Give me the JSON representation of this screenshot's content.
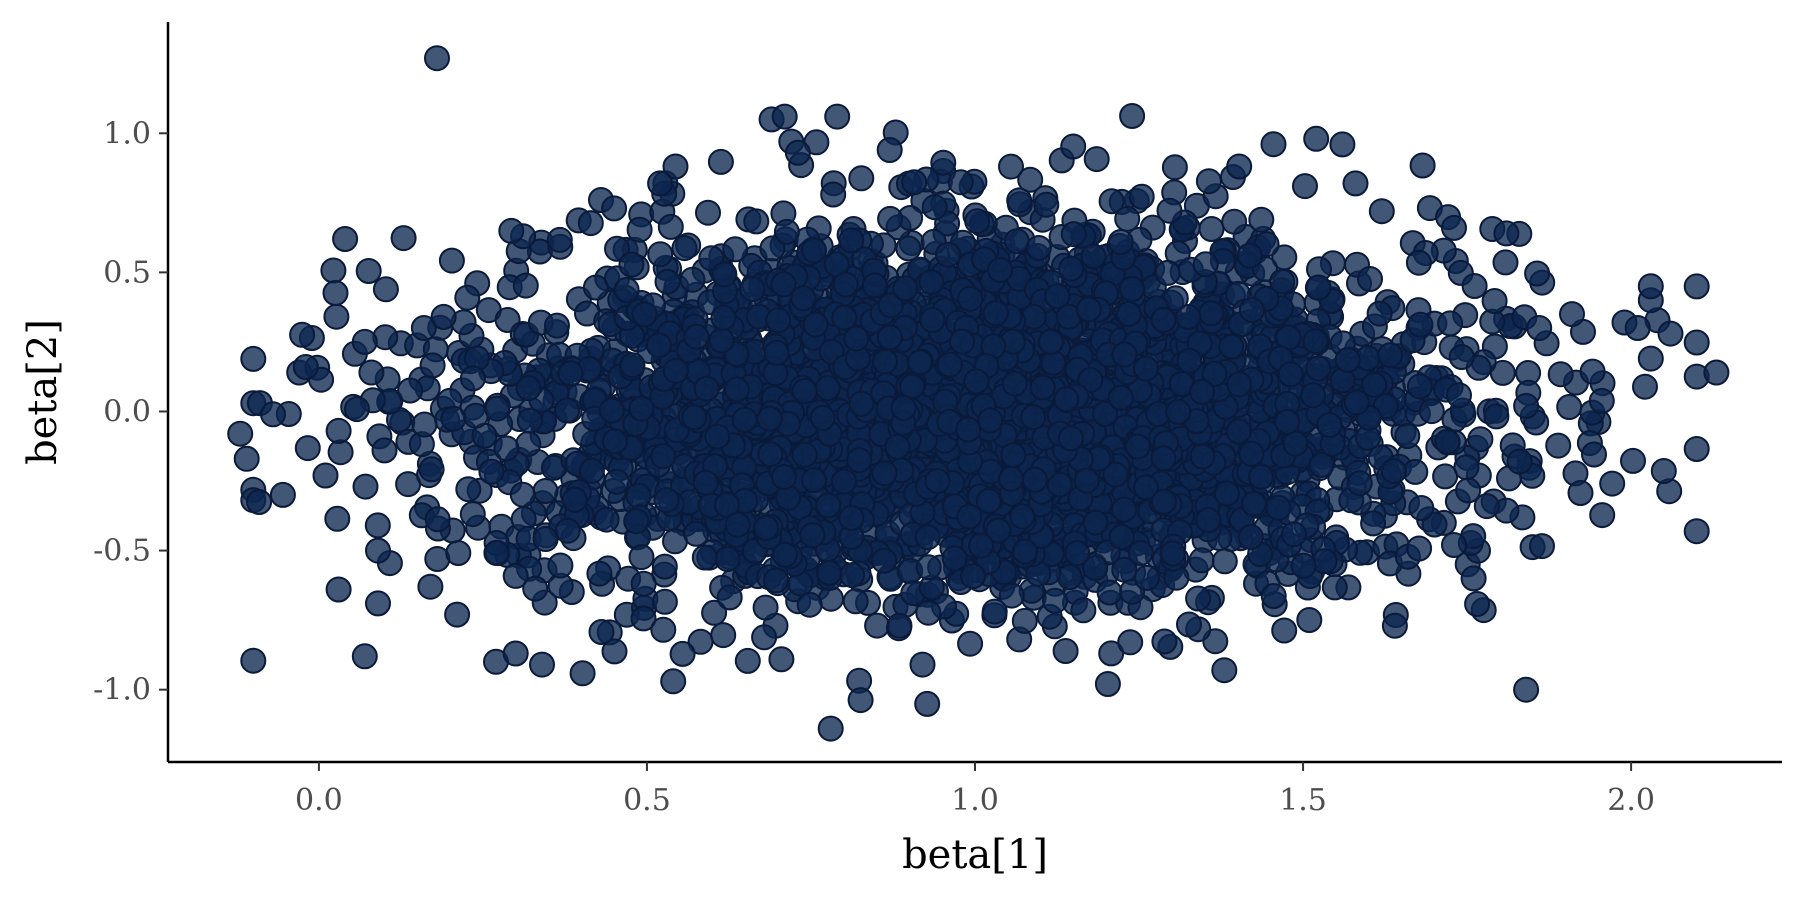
{
  "chart_data": {
    "type": "scatter",
    "title": "",
    "xlabel": "beta[1]",
    "ylabel": "beta[2]",
    "xlim": [
      -0.23,
      2.23
    ],
    "ylim": [
      -1.26,
      1.4
    ],
    "x_ticks": [
      0.0,
      0.5,
      1.0,
      1.5,
      2.0
    ],
    "x_tick_labels": [
      "0.0",
      "0.5",
      "1.0",
      "1.5",
      "2.0"
    ],
    "y_ticks": [
      -1.0,
      -0.5,
      0.0,
      0.5,
      1.0
    ],
    "y_tick_labels": [
      "-1.0",
      "-0.5",
      "0.0",
      "0.5",
      "1.0"
    ],
    "grid": false,
    "legend": "none",
    "point_fill": "#0d2650",
    "point_stroke": "#0a1a3a",
    "point_opacity": 0.78,
    "n_points": 4000,
    "distribution": {
      "x_mean": 1.0,
      "x_sd": 0.36,
      "y_mean": 0.0,
      "y_sd": 0.32
    },
    "notable_points": [
      {
        "x": 0.18,
        "y": 1.27
      },
      {
        "x": 0.04,
        "y": 0.62
      },
      {
        "x": -0.12,
        "y": -0.08
      },
      {
        "x": -0.11,
        "y": -0.17
      },
      {
        "x": -0.09,
        "y": 0.03
      },
      {
        "x": -0.07,
        "y": -0.01
      },
      {
        "x": -0.03,
        "y": 0.14
      },
      {
        "x": -0.02,
        "y": 0.16
      },
      {
        "x": 0.01,
        "y": -0.23
      },
      {
        "x": 0.03,
        "y": -0.07
      },
      {
        "x": 0.03,
        "y": -0.64
      },
      {
        "x": 0.07,
        "y": 0.25
      },
      {
        "x": 0.07,
        "y": -0.88
      },
      {
        "x": 0.08,
        "y": 0.14
      },
      {
        "x": 0.09,
        "y": -0.5
      },
      {
        "x": 0.09,
        "y": -0.69
      },
      {
        "x": 0.1,
        "y": -0.14
      },
      {
        "x": 0.16,
        "y": 0.3
      },
      {
        "x": 0.17,
        "y": -0.63
      },
      {
        "x": 0.19,
        "y": 0.34
      },
      {
        "x": 0.27,
        "y": -0.9
      },
      {
        "x": 0.3,
        "y": -0.87
      },
      {
        "x": 0.34,
        "y": -0.91
      },
      {
        "x": 0.43,
        "y": 0.76
      },
      {
        "x": 0.45,
        "y": 0.73
      },
      {
        "x": 0.52,
        "y": 0.82
      },
      {
        "x": 0.54,
        "y": -0.97
      },
      {
        "x": 0.69,
        "y": 1.05
      },
      {
        "x": 0.71,
        "y": 1.06
      },
      {
        "x": 0.72,
        "y": 0.97
      },
      {
        "x": 0.73,
        "y": 0.93
      },
      {
        "x": 0.79,
        "y": 1.06
      },
      {
        "x": 0.78,
        "y": -1.14
      },
      {
        "x": 0.87,
        "y": 0.94
      },
      {
        "x": 0.92,
        "y": -0.91
      },
      {
        "x": 1.38,
        "y": -0.93
      },
      {
        "x": 1.52,
        "y": 0.98
      },
      {
        "x": 1.56,
        "y": 0.96
      },
      {
        "x": 1.58,
        "y": 0.82
      },
      {
        "x": 1.62,
        "y": 0.72
      },
      {
        "x": 1.64,
        "y": -0.77
      },
      {
        "x": 1.73,
        "y": 0.66
      },
      {
        "x": 1.73,
        "y": -0.48
      },
      {
        "x": 1.76,
        "y": -0.6
      },
      {
        "x": 1.78,
        "y": -0.34
      },
      {
        "x": 1.81,
        "y": 0.64
      },
      {
        "x": 1.83,
        "y": -0.18
      },
      {
        "x": 1.84,
        "y": -1.0
      },
      {
        "x": 1.84,
        "y": 0.02
      },
      {
        "x": 1.86,
        "y": 0.3
      },
      {
        "x": 1.91,
        "y": 0.35
      },
      {
        "x": 1.99,
        "y": 0.32
      },
      {
        "x": 2.01,
        "y": 0.3
      },
      {
        "x": 2.03,
        "y": 0.4
      },
      {
        "x": 2.03,
        "y": 0.45
      },
      {
        "x": 2.03,
        "y": 0.19
      },
      {
        "x": 2.06,
        "y": 0.28
      },
      {
        "x": 2.13,
        "y": 0.14
      }
    ]
  }
}
